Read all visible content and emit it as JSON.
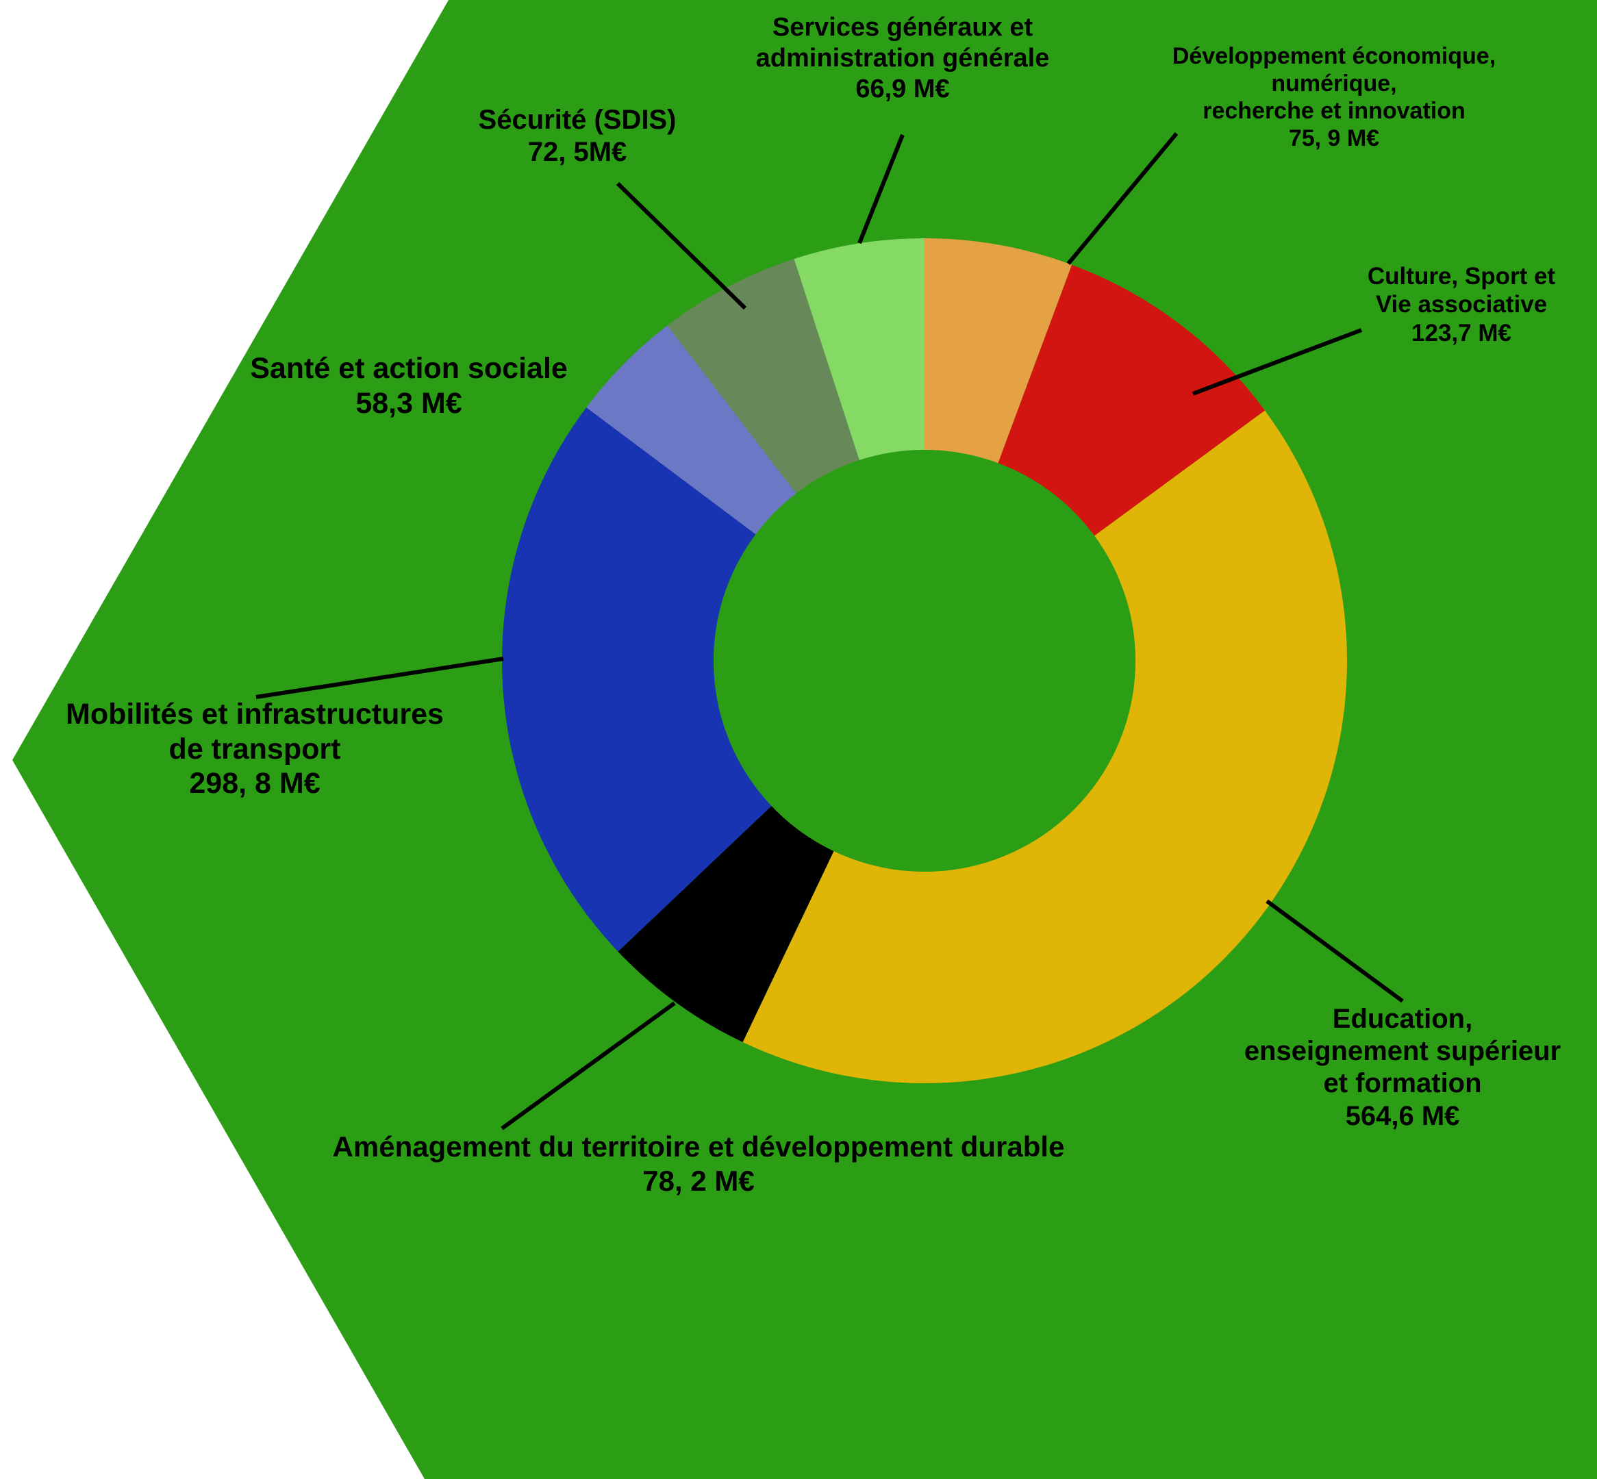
{
  "chart_data": {
    "type": "pie",
    "variant": "donut",
    "unit": "M€",
    "background_color": "#2b9e15",
    "slices": [
      {
        "category": "Développement économique, numérique, recherche et innovation",
        "value": 75.9,
        "color": "#e4a244",
        "label_lines": [
          "Développement économique,",
          "numérique,",
          "recherche et innovation",
          "75, 9  M€"
        ]
      },
      {
        "category": "Culture, Sport et Vie associative",
        "value": 123.7,
        "color": "#d21510",
        "label_lines": [
          "Culture, Sport et",
          "Vie associative",
          "123,7 M€"
        ]
      },
      {
        "category": "Education, enseignement supérieur et formation",
        "value": 564.6,
        "color": "#dfb507",
        "label_lines": [
          "Education,",
          "enseignement supérieur",
          "et formation",
          "564,6 M€"
        ]
      },
      {
        "category": "Aménagement du territoire et développement durable",
        "value": 78.2,
        "color": "#000000",
        "label_lines": [
          "Aménagement du territoire et développement durable",
          "78, 2 M€"
        ]
      },
      {
        "category": "Mobilités et infrastructures de transport",
        "value": 298.8,
        "color": "#1834b3",
        "label_lines": [
          "Mobilités et infrastructures",
          "de transport",
          "298, 8 M€"
        ]
      },
      {
        "category": "Santé et action sociale",
        "value": 58.3,
        "color": "#6c78c6",
        "label_lines": [
          "Santé et action sociale",
          "58,3 M€"
        ]
      },
      {
        "category": "Sécurité (SDIS)",
        "value": 72.5,
        "color": "#67895a",
        "label_lines": [
          "Sécurité (SDIS)",
          "72, 5M€"
        ]
      },
      {
        "category": "Services généraux et administration générale",
        "value": 66.9,
        "color": "#84da64",
        "label_lines": [
          "Services généraux et",
          "administration générale",
          "66,9 M€"
        ]
      }
    ]
  }
}
